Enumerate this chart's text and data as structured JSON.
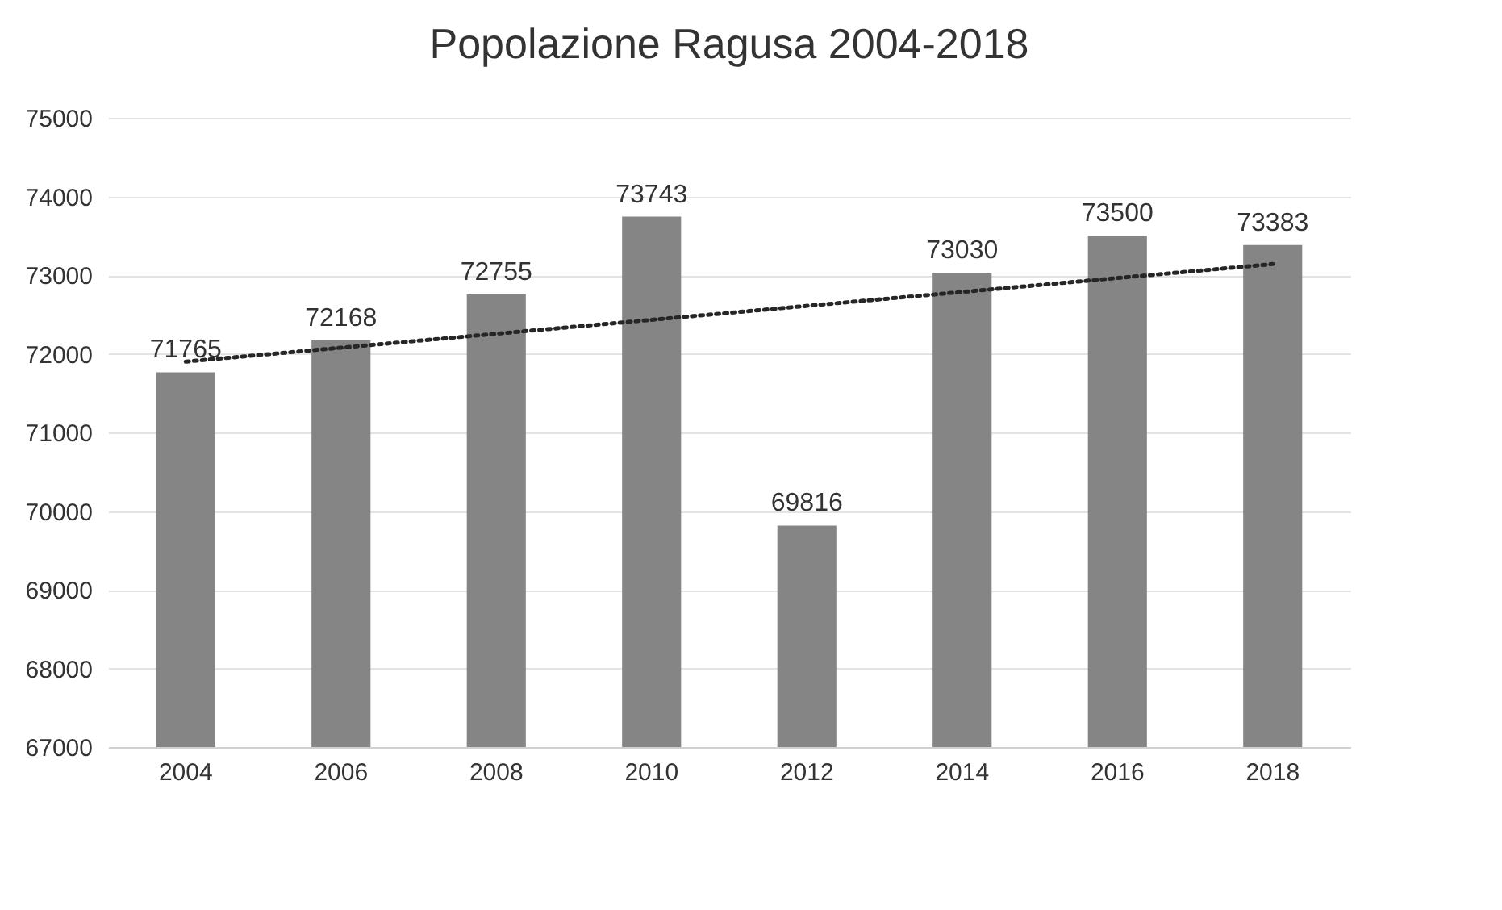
{
  "chart_data": {
    "type": "bar",
    "title": "Popolazione Ragusa 2004-2018",
    "categories": [
      "2004",
      "2006",
      "2008",
      "2010",
      "2012",
      "2014",
      "2016",
      "2018"
    ],
    "series": [
      {
        "color": "#858585",
        "values": [
          71765,
          72168,
          72755,
          73743,
          69816,
          73030,
          73500,
          73383
        ],
        "value_labels": [
          "71765",
          "72168",
          "72755",
          "73743",
          "69816",
          "73030",
          "73500",
          "73383"
        ]
      },
      {
        "type": "line",
        "color": "#262626",
        "line_style": "dotted",
        "values": [
          71900,
          null,
          null,
          null,
          null,
          null,
          null,
          73140
        ]
      }
    ],
    "ylim": [
      67000,
      75000
    ],
    "yticks": [
      67000,
      68000,
      69000,
      70000,
      71000,
      72000,
      73000,
      74000,
      75000
    ],
    "grid": "y"
  }
}
